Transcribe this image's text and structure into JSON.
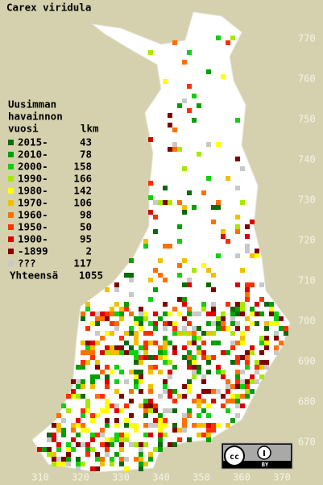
{
  "title": "Carex viridula",
  "legend": {
    "heading": [
      "Uusimman",
      "havainnon",
      "vuosi"
    ],
    "count_heading": "lkm",
    "items": [
      {
        "label": "2015-",
        "count": 43,
        "color": "#0b6a0b"
      },
      {
        "label": "2010-",
        "count": 78,
        "color": "#00a000"
      },
      {
        "label": "2000-",
        "count": 158,
        "color": "#10d010"
      },
      {
        "label": "1990-",
        "count": 166,
        "color": "#a8e800"
      },
      {
        "label": "1980-",
        "count": 142,
        "color": "#ffff00"
      },
      {
        "label": "1970-",
        "count": 106,
        "color": "#f0c000"
      },
      {
        "label": "1960-",
        "count": 98,
        "color": "#ff7000"
      },
      {
        "label": "1950-",
        "count": 50,
        "color": "#ff3000"
      },
      {
        "label": "1900-",
        "count": 95,
        "color": "#dd0000"
      },
      {
        "label": "-1899",
        "count": 2,
        "color": "#800000"
      },
      {
        "label": "???",
        "count": 117,
        "color": "#c8c8c8"
      }
    ],
    "total_label": "Yhteensä",
    "total": 1055
  },
  "grid": {
    "northing": [
      770,
      760,
      750,
      740,
      730,
      720,
      710,
      700,
      690,
      680,
      670
    ],
    "easting": [
      310,
      320,
      330,
      340,
      350,
      360,
      370
    ]
  }
}
